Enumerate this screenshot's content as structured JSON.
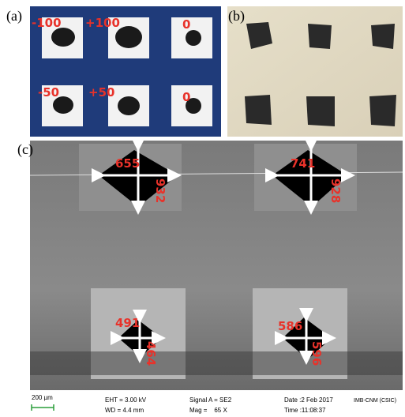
{
  "panels": {
    "a": {
      "label": "(a)",
      "annotations": [
        "-100",
        "+100",
        "0",
        "-50",
        "+50",
        "0"
      ]
    },
    "b": {
      "label": "(b)"
    },
    "c": {
      "label": "(c)",
      "measurements": [
        {
          "width": "655",
          "height": "932"
        },
        {
          "width": "741",
          "height": "928"
        },
        {
          "width": "491",
          "height": "464"
        },
        {
          "width": "586",
          "height": "596"
        }
      ]
    }
  },
  "footer": {
    "scale_bar": "200 µm",
    "eht": "EHT = 3.00 kV",
    "wd": "WD = 4.4 mm",
    "signal": "Signal A = SE2",
    "mag": "Mag =    65 X",
    "date": "Date :2 Feb 2017",
    "time": "Time :11:08:37",
    "institution": "IMB-CNM (CSIC)"
  }
}
